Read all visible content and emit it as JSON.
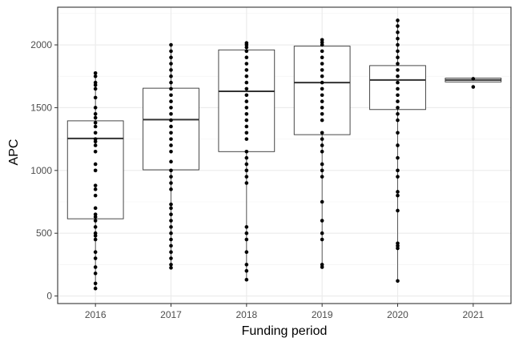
{
  "chart_data": {
    "type": "box",
    "xlabel": "Funding period",
    "ylabel": "APC",
    "categories": [
      "2016",
      "2017",
      "2018",
      "2019",
      "2020",
      "2021"
    ],
    "y_ticks": [
      0,
      500,
      1000,
      1500,
      2000
    ],
    "ylim": [
      -60,
      2300
    ],
    "grid": true,
    "boxes": [
      {
        "category": "2016",
        "q1": 615,
        "median": 1255,
        "q3": 1395,
        "whisker_low": 60,
        "whisker_high": 1775
      },
      {
        "category": "2017",
        "q1": 1005,
        "median": 1405,
        "q3": 1655,
        "whisker_low": 225,
        "whisker_high": 2000
      },
      {
        "category": "2018",
        "q1": 1150,
        "median": 1630,
        "q3": 1960,
        "whisker_low": 130,
        "whisker_high": 2015
      },
      {
        "category": "2019",
        "q1": 1285,
        "median": 1700,
        "q3": 1990,
        "whisker_low": 230,
        "whisker_high": 2040
      },
      {
        "category": "2020",
        "q1": 1485,
        "median": 1720,
        "q3": 1835,
        "whisker_low": 120,
        "whisker_high": 2195
      },
      {
        "category": "2021",
        "q1": 1705,
        "median": 1720,
        "q3": 1735,
        "whisker_low": 1705,
        "whisker_high": 1735
      }
    ],
    "points": [
      {
        "category": "2016",
        "values": [
          60,
          100,
          180,
          230,
          300,
          350,
          450,
          480,
          500,
          550,
          600,
          630,
          650,
          700,
          800,
          850,
          880,
          1000,
          1050,
          1150,
          1200,
          1230,
          1250,
          1300,
          1350,
          1380,
          1420,
          1450,
          1500,
          1580,
          1650,
          1680,
          1700,
          1750,
          1775
        ]
      },
      {
        "category": "2017",
        "values": [
          225,
          250,
          300,
          350,
          400,
          450,
          500,
          550,
          600,
          650,
          700,
          730,
          850,
          900,
          950,
          1000,
          1070,
          1150,
          1200,
          1250,
          1300,
          1350,
          1400,
          1450,
          1500,
          1550,
          1600,
          1650,
          1700,
          1750,
          1800,
          1850,
          1900,
          1950,
          2000
        ]
      },
      {
        "category": "2018",
        "values": [
          130,
          200,
          250,
          350,
          450,
          500,
          550,
          900,
          950,
          1000,
          1050,
          1100,
          1150,
          1250,
          1300,
          1350,
          1400,
          1450,
          1500,
          1550,
          1600,
          1650,
          1700,
          1750,
          1800,
          1850,
          1900,
          1950,
          1980,
          2000,
          2015
        ]
      },
      {
        "category": "2019",
        "values": [
          230,
          250,
          450,
          500,
          600,
          750,
          950,
          1000,
          1050,
          1150,
          1200,
          1250,
          1300,
          1400,
          1450,
          1500,
          1550,
          1600,
          1650,
          1700,
          1750,
          1800,
          1850,
          1900,
          1950,
          2000,
          2020,
          2040
        ]
      },
      {
        "category": "2020",
        "values": [
          120,
          380,
          400,
          420,
          680,
          800,
          830,
          950,
          1000,
          1100,
          1200,
          1300,
          1400,
          1450,
          1500,
          1550,
          1600,
          1650,
          1700,
          1750,
          1800,
          1850,
          1900,
          1950,
          2000,
          2050,
          2100,
          2150,
          2195
        ]
      },
      {
        "category": "2021",
        "values": [
          1665,
          1730
        ]
      }
    ]
  }
}
